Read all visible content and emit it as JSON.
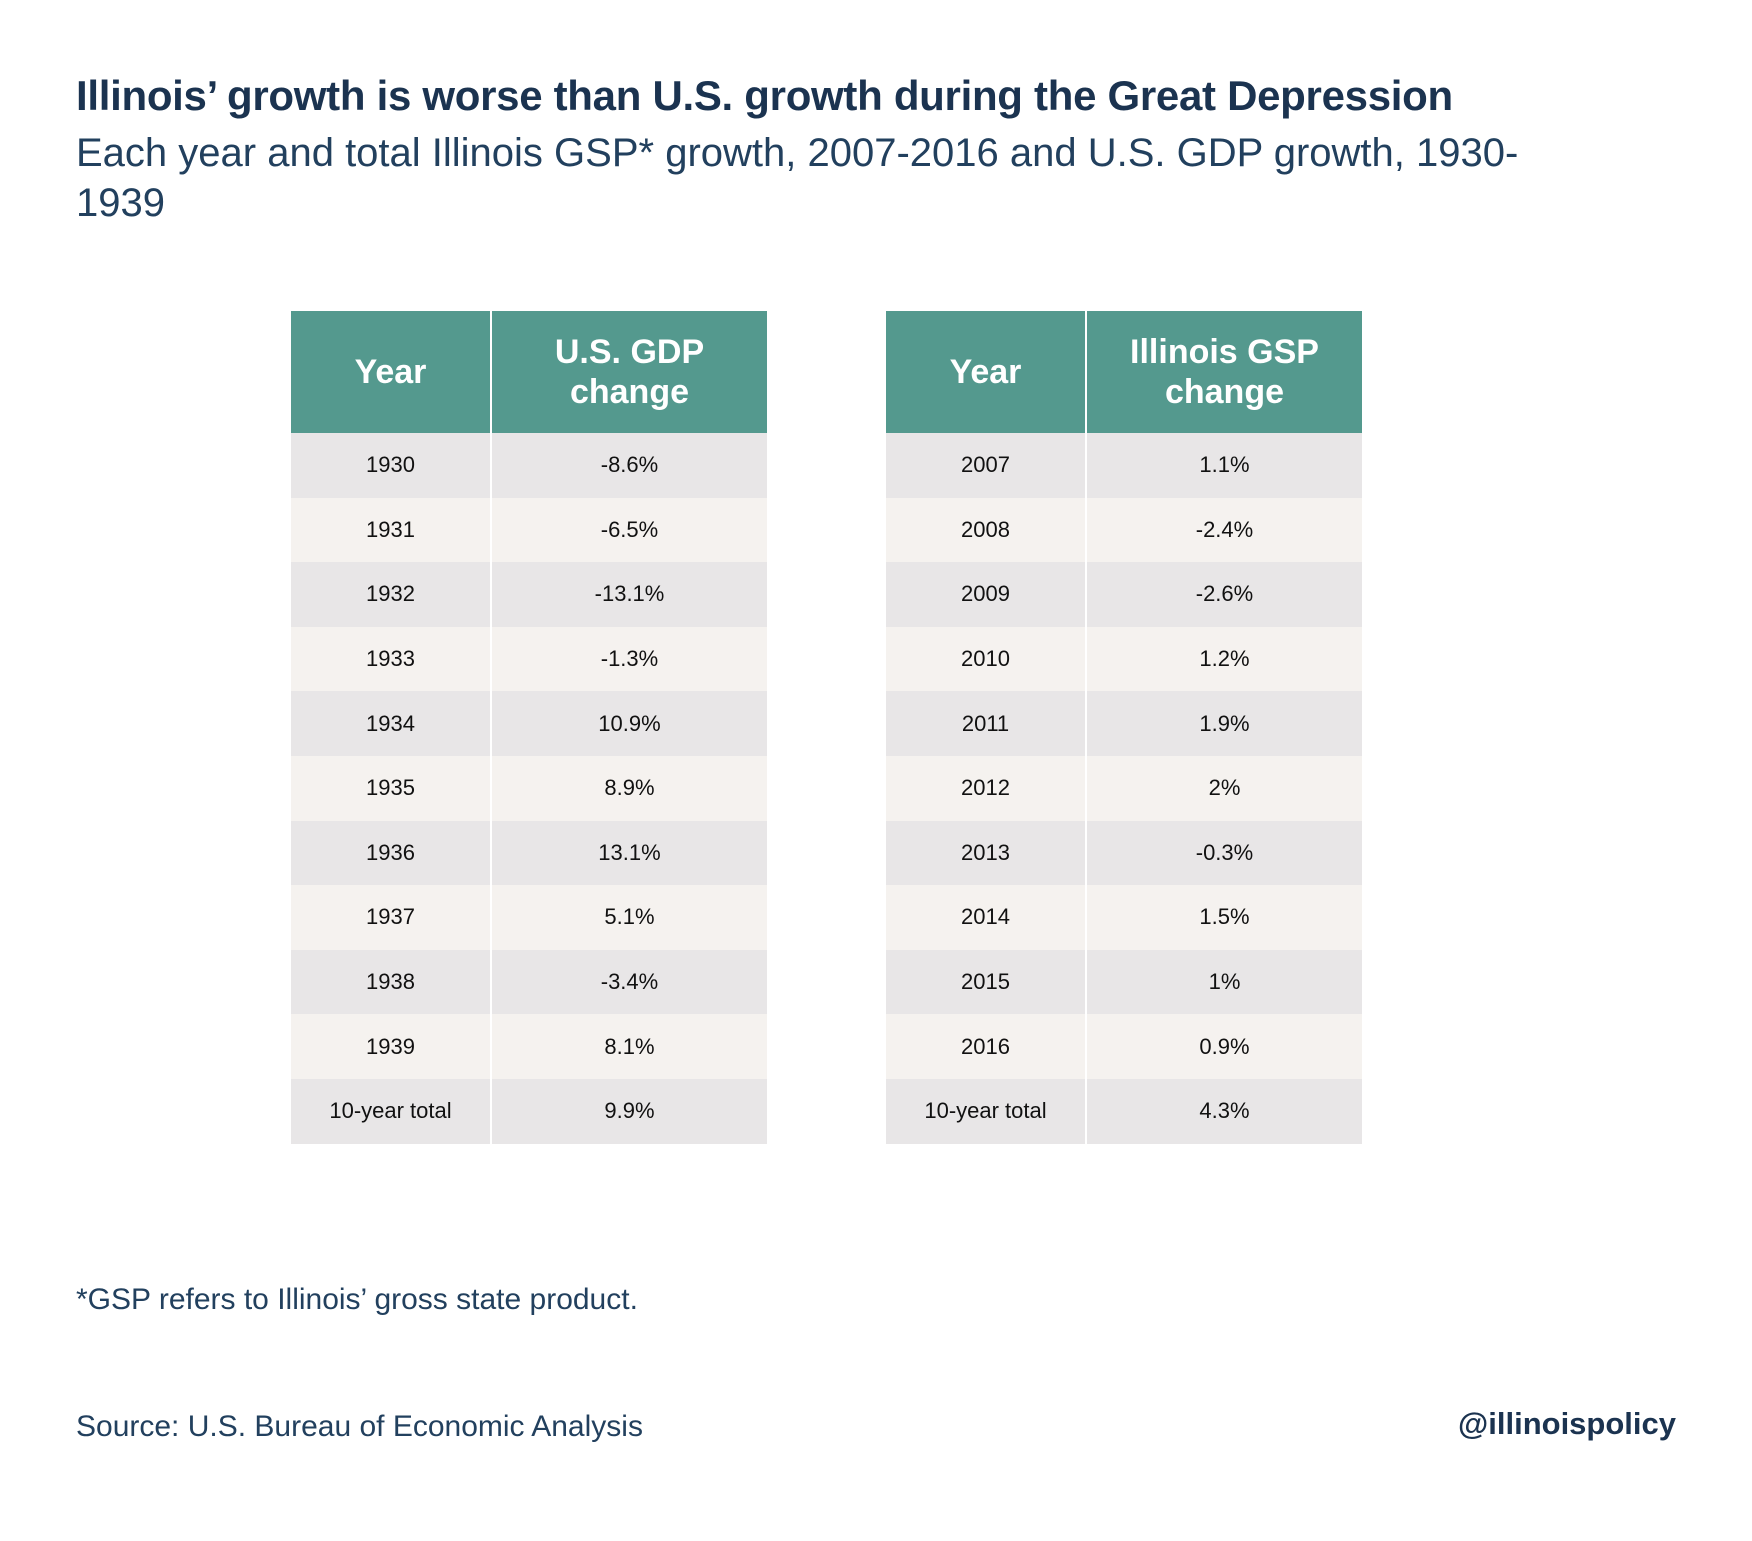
{
  "title": "Illinois’ growth is worse than U.S. growth during the Great Depression",
  "subtitle": "Each year and total Illinois GSP* growth, 2007-2016 and U.S. GDP growth, 1930-1939",
  "footnote": "*GSP refers to Illinois’ gross state product.",
  "source": "Source: U.S. Bureau of Economic Analysis",
  "handle": "@illinoispolicy",
  "colors": {
    "header": "#54998e",
    "row_odd": "#e8e6e7",
    "row_even": "#f5f2ef",
    "text": "#1b3350"
  },
  "chart_data": [
    {
      "type": "table",
      "columns": [
        "Year",
        "U.S. GDP change"
      ],
      "rows": [
        [
          "1930",
          "-8.6%"
        ],
        [
          "1931",
          "-6.5%"
        ],
        [
          "1932",
          "-13.1%"
        ],
        [
          "1933",
          "-1.3%"
        ],
        [
          "1934",
          "10.9%"
        ],
        [
          "1935",
          "8.9%"
        ],
        [
          "1936",
          "13.1%"
        ],
        [
          "1937",
          "5.1%"
        ],
        [
          "1938",
          "-3.4%"
        ],
        [
          "1939",
          "8.1%"
        ],
        [
          "10-year total",
          "9.9%"
        ]
      ]
    },
    {
      "type": "table",
      "columns": [
        "Year",
        "Illinois GSP change"
      ],
      "rows": [
        [
          "2007",
          "1.1%"
        ],
        [
          "2008",
          "-2.4%"
        ],
        [
          "2009",
          "-2.6%"
        ],
        [
          "2010",
          "1.2%"
        ],
        [
          "2011",
          "1.9%"
        ],
        [
          "2012",
          "2%"
        ],
        [
          "2013",
          "-0.3%"
        ],
        [
          "2014",
          "1.5%"
        ],
        [
          "2015",
          "1%"
        ],
        [
          "2016",
          "0.9%"
        ],
        [
          "10-year total",
          "4.3%"
        ]
      ]
    }
  ]
}
